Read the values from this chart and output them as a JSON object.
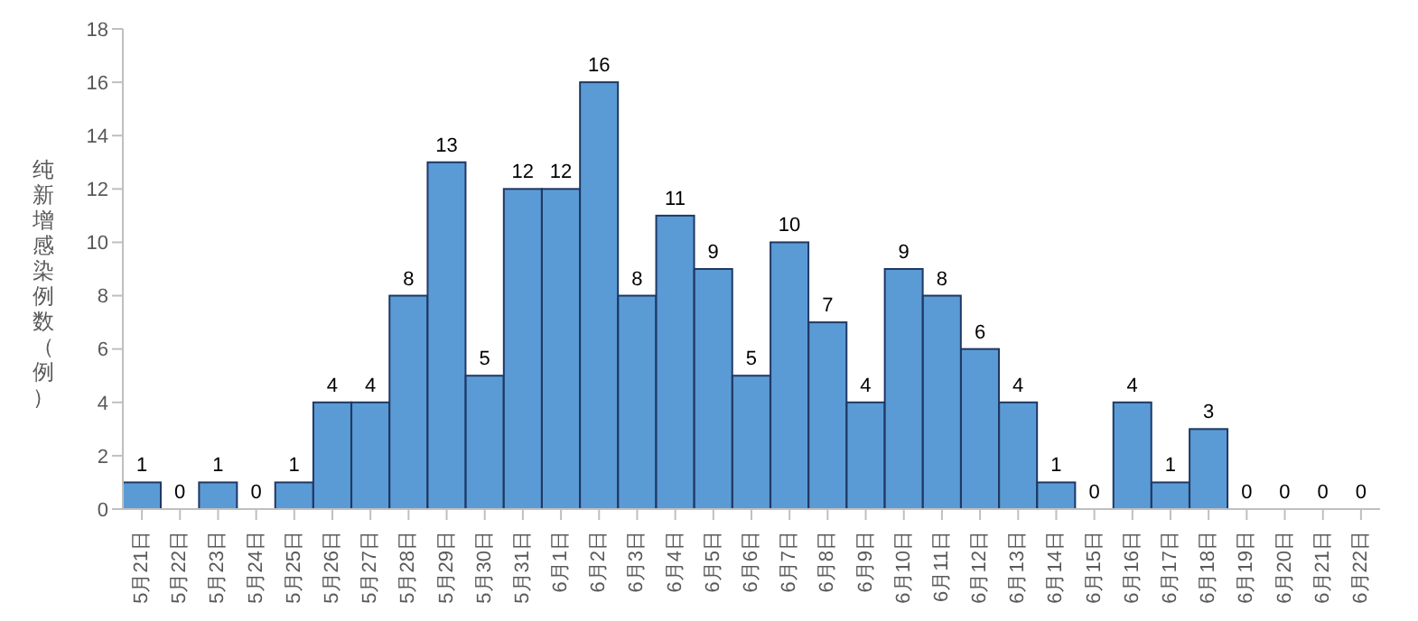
{
  "chart_data": {
    "type": "bar",
    "ylabel": "纯新增感染例数（例）",
    "categories": [
      "5月21日",
      "5月22日",
      "5月23日",
      "5月24日",
      "5月25日",
      "5月26日",
      "5月27日",
      "5月28日",
      "5月29日",
      "5月30日",
      "5月31日",
      "6月1日",
      "6月2日",
      "6月3日",
      "6月4日",
      "6月5日",
      "6月6日",
      "6月7日",
      "6月8日",
      "6月9日",
      "6月10日",
      "6月11日",
      "6月12日",
      "6月13日",
      "6月14日",
      "6月15日",
      "6月16日",
      "6月17日",
      "6月18日",
      "6月19日",
      "6月20日",
      "6月21日",
      "6月22日"
    ],
    "values": [
      1,
      0,
      1,
      0,
      1,
      4,
      4,
      8,
      13,
      5,
      12,
      12,
      16,
      8,
      11,
      9,
      5,
      10,
      7,
      4,
      9,
      8,
      6,
      4,
      1,
      0,
      4,
      1,
      3,
      0,
      0,
      0,
      0
    ],
    "color": "#5b9bd5",
    "ylim": [
      0,
      18
    ],
    "yticks": [
      0,
      2,
      4,
      6,
      8,
      10,
      12,
      14,
      16,
      18
    ],
    "data_labels": true,
    "grid": false,
    "legend": false
  }
}
